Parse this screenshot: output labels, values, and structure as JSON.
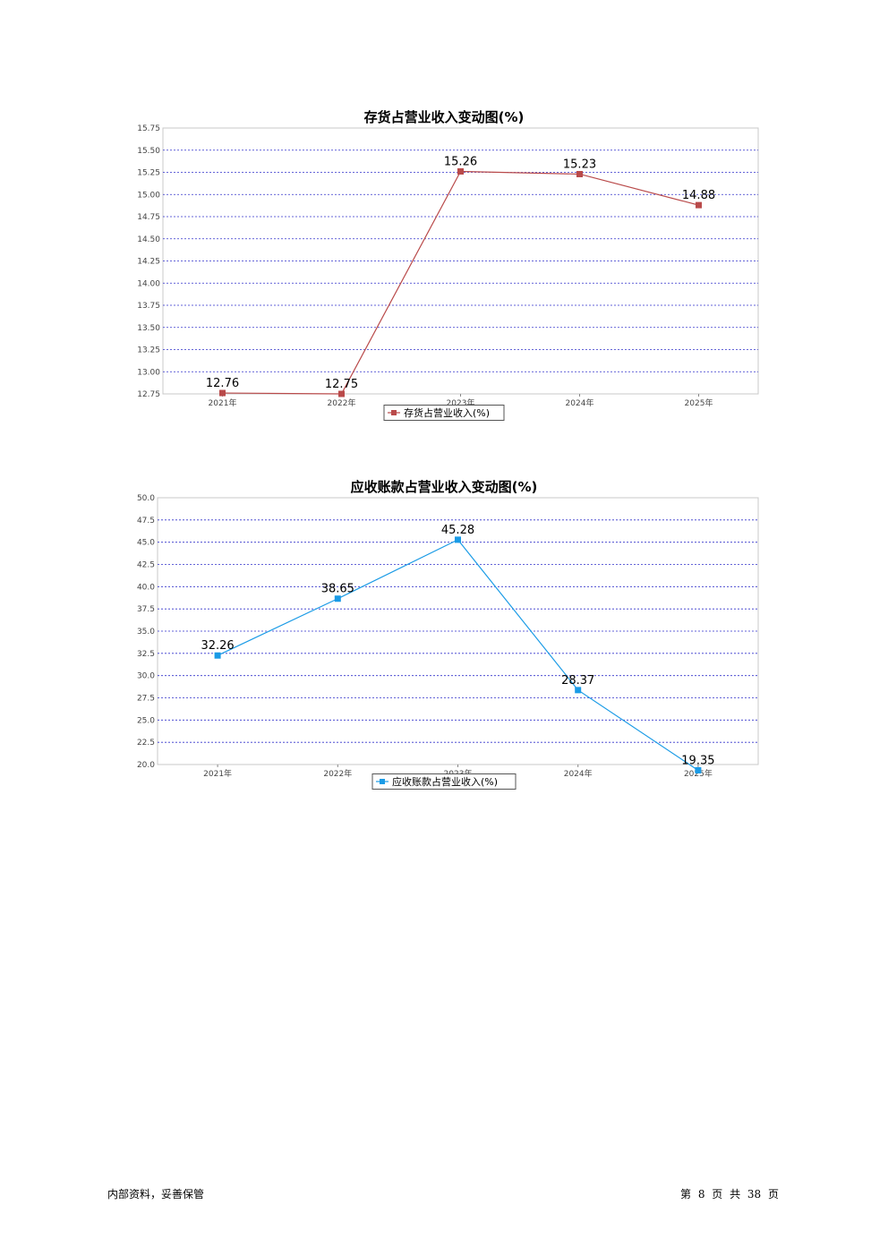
{
  "chart_data": [
    {
      "type": "line",
      "title": "存货占营业收入变动图(%)",
      "categories": [
        "2021年",
        "2022年",
        "2023年",
        "2024年",
        "2025年"
      ],
      "series": [
        {
          "name": "存货占营业收入(%)",
          "values": [
            12.76,
            12.75,
            15.26,
            15.23,
            14.88
          ],
          "color": "#b94a4a"
        }
      ],
      "yticks": [
        "12.75",
        "13.00",
        "13.25",
        "13.50",
        "13.75",
        "14.00",
        "14.25",
        "14.50",
        "14.75",
        "15.00",
        "15.25",
        "15.50",
        "15.75"
      ],
      "ylim": [
        12.75,
        15.75
      ],
      "grid": true,
      "legend_position": "bottom"
    },
    {
      "type": "line",
      "title": "应收账款占营业收入变动图(%)",
      "categories": [
        "2021年",
        "2022年",
        "2023年",
        "2024年",
        "2025年"
      ],
      "series": [
        {
          "name": "应收账款占营业收入(%)",
          "values": [
            32.26,
            38.65,
            45.28,
            28.37,
            19.35
          ],
          "color": "#1a9be6"
        }
      ],
      "yticks": [
        "20.0",
        "22.5",
        "25.0",
        "27.5",
        "30.0",
        "32.5",
        "35.0",
        "37.5",
        "40.0",
        "42.5",
        "45.0",
        "47.5",
        "50.0"
      ],
      "ylim": [
        20.0,
        50.0
      ],
      "grid": true,
      "legend_position": "bottom"
    }
  ],
  "footer": {
    "left": "内部资料，妥善保管",
    "right": "第 8 页 共 38 页"
  }
}
